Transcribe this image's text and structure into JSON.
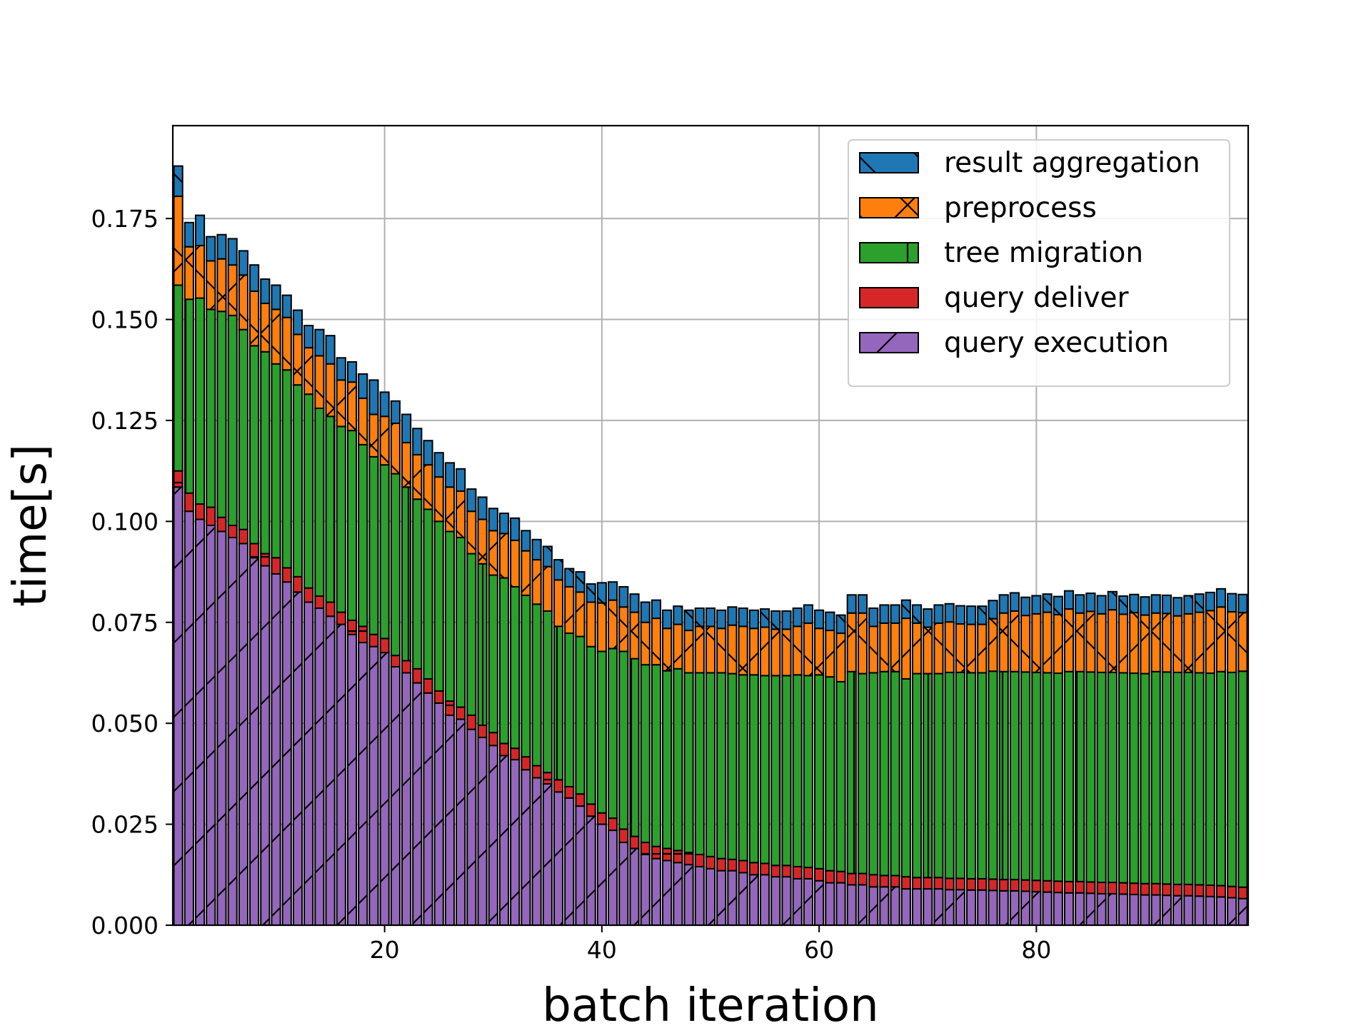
{
  "chart_data": {
    "type": "bar",
    "stacked": true,
    "xlabel": "batch iteration",
    "ylabel": "time[s]",
    "xlim": [
      0.5,
      99.5
    ],
    "ylim": [
      0,
      0.198
    ],
    "xticks": [
      20,
      40,
      60,
      80
    ],
    "yticks": [
      "0.000",
      "0.025",
      "0.050",
      "0.075",
      "0.100",
      "0.125",
      "0.150",
      "0.175"
    ],
    "grid": true,
    "legend_position": "top-right",
    "x_start": 1,
    "series": [
      {
        "name": "query execution",
        "color": "#9467bd",
        "hatch": "/",
        "values": [
          0.1085,
          0.1025,
          0.1005,
          0.099,
          0.0975,
          0.096,
          0.0945,
          0.091,
          0.089,
          0.087,
          0.085,
          0.0825,
          0.08,
          0.0785,
          0.0765,
          0.0745,
          0.072,
          0.07,
          0.069,
          0.0675,
          0.064,
          0.0625,
          0.06,
          0.0575,
          0.055,
          0.052,
          0.051,
          0.0485,
          0.0465,
          0.0445,
          0.042,
          0.041,
          0.0385,
          0.0365,
          0.035,
          0.033,
          0.0315,
          0.0295,
          0.027,
          0.025,
          0.0235,
          0.0205,
          0.019,
          0.0175,
          0.0165,
          0.016,
          0.0155,
          0.015,
          0.0145,
          0.014,
          0.0135,
          0.0135,
          0.013,
          0.0125,
          0.0125,
          0.012,
          0.012,
          0.0115,
          0.0115,
          0.011,
          0.0105,
          0.0105,
          0.01,
          0.01,
          0.0095,
          0.0095,
          0.0095,
          0.009,
          0.009,
          0.009,
          0.009,
          0.0088,
          0.0088,
          0.0087,
          0.0087,
          0.0086,
          0.0085,
          0.0085,
          0.0084,
          0.0083,
          0.0082,
          0.0081,
          0.008,
          0.008,
          0.0079,
          0.0078,
          0.0078,
          0.0077,
          0.0076,
          0.0075,
          0.0075,
          0.0074,
          0.0073,
          0.0073,
          0.0072,
          0.0071,
          0.007,
          0.0068,
          0.0066
        ]
      },
      {
        "name": "query deliver",
        "color": "#d62728",
        "hatch": "-",
        "values": [
          0.004,
          0.0045,
          0.0038,
          0.0045,
          0.0035,
          0.003,
          0.0035,
          0.0035,
          0.003,
          0.004,
          0.0035,
          0.0038,
          0.0035,
          0.003,
          0.0035,
          0.003,
          0.0035,
          0.004,
          0.003,
          0.0035,
          0.0028,
          0.003,
          0.0035,
          0.0035,
          0.003,
          0.0035,
          0.003,
          0.0035,
          0.003,
          0.0032,
          0.003,
          0.0028,
          0.0032,
          0.003,
          0.0028,
          0.003,
          0.0028,
          0.003,
          0.003,
          0.0028,
          0.003,
          0.0033,
          0.003,
          0.003,
          0.003,
          0.003,
          0.003,
          0.003,
          0.003,
          0.003,
          0.003,
          0.0028,
          0.003,
          0.003,
          0.0028,
          0.0028,
          0.0028,
          0.003,
          0.0028,
          0.003,
          0.003,
          0.0028,
          0.0028,
          0.0028,
          0.003,
          0.0028,
          0.0028,
          0.003,
          0.0028,
          0.0028,
          0.0028,
          0.0028,
          0.0028,
          0.0028,
          0.0028,
          0.0028,
          0.0028,
          0.0028,
          0.0028,
          0.0028,
          0.0028,
          0.0028,
          0.0028,
          0.0028,
          0.0028,
          0.0028,
          0.0028,
          0.0028,
          0.0028,
          0.0028,
          0.0028,
          0.0028,
          0.0028,
          0.0028,
          0.0028,
          0.0028,
          0.0028,
          0.0028,
          0.0028
        ]
      },
      {
        "name": "tree migration",
        "color": "#2ca02c",
        "hatch": "|",
        "values": [
          0.046,
          0.048,
          0.051,
          0.049,
          0.051,
          0.052,
          0.0495,
          0.049,
          0.05,
          0.048,
          0.049,
          0.0475,
          0.048,
          0.0465,
          0.046,
          0.046,
          0.047,
          0.045,
          0.044,
          0.043,
          0.045,
          0.043,
          0.042,
          0.042,
          0.042,
          0.042,
          0.042,
          0.04,
          0.04,
          0.039,
          0.041,
          0.04,
          0.04,
          0.04,
          0.04,
          0.038,
          0.038,
          0.039,
          0.039,
          0.04,
          0.042,
          0.044,
          0.044,
          0.044,
          0.045,
          0.044,
          0.045,
          0.0445,
          0.045,
          0.0455,
          0.046,
          0.046,
          0.046,
          0.0465,
          0.0465,
          0.047,
          0.047,
          0.0475,
          0.0475,
          0.048,
          0.048,
          0.047,
          0.05,
          0.0495,
          0.05,
          0.0505,
          0.0505,
          0.049,
          0.0505,
          0.0505,
          0.0505,
          0.051,
          0.051,
          0.051,
          0.051,
          0.0515,
          0.0515,
          0.0515,
          0.0515,
          0.0515,
          0.0515,
          0.0515,
          0.052,
          0.052,
          0.052,
          0.052,
          0.052,
          0.052,
          0.052,
          0.052,
          0.0525,
          0.0525,
          0.0525,
          0.0525,
          0.0525,
          0.0525,
          0.053,
          0.053,
          0.0535
        ]
      },
      {
        "name": "preprocess",
        "color": "#ff7f0e",
        "hatch": "x",
        "values": [
          0.022,
          0.013,
          0.013,
          0.012,
          0.013,
          0.0125,
          0.0135,
          0.0135,
          0.012,
          0.0135,
          0.013,
          0.0125,
          0.0115,
          0.013,
          0.013,
          0.0115,
          0.012,
          0.0115,
          0.0105,
          0.012,
          0.0125,
          0.011,
          0.011,
          0.011,
          0.011,
          0.011,
          0.0115,
          0.0105,
          0.011,
          0.011,
          0.011,
          0.0115,
          0.011,
          0.011,
          0.011,
          0.0115,
          0.0115,
          0.011,
          0.011,
          0.012,
          0.012,
          0.011,
          0.0115,
          0.0105,
          0.0115,
          0.0105,
          0.011,
          0.0105,
          0.0115,
          0.0115,
          0.011,
          0.012,
          0.012,
          0.0115,
          0.012,
          0.0115,
          0.0115,
          0.012,
          0.013,
          0.0115,
          0.0115,
          0.012,
          0.0145,
          0.015,
          0.0115,
          0.012,
          0.012,
          0.015,
          0.0125,
          0.0115,
          0.0125,
          0.0125,
          0.012,
          0.012,
          0.012,
          0.013,
          0.0145,
          0.015,
          0.014,
          0.0145,
          0.015,
          0.0145,
          0.0155,
          0.0145,
          0.015,
          0.0145,
          0.0155,
          0.0145,
          0.015,
          0.0145,
          0.0145,
          0.0145,
          0.014,
          0.0145,
          0.015,
          0.0155,
          0.016,
          0.015,
          0.0145
        ]
      },
      {
        "name": "result aggregation",
        "color": "#1f77b4",
        "hatch": "\\",
        "values": [
          0.0075,
          0.006,
          0.0075,
          0.006,
          0.006,
          0.0065,
          0.006,
          0.0065,
          0.006,
          0.006,
          0.0055,
          0.006,
          0.0055,
          0.0065,
          0.007,
          0.0055,
          0.005,
          0.006,
          0.0085,
          0.006,
          0.0055,
          0.007,
          0.0065,
          0.006,
          0.006,
          0.006,
          0.0055,
          0.0055,
          0.0055,
          0.0055,
          0.005,
          0.0055,
          0.005,
          0.005,
          0.005,
          0.005,
          0.0045,
          0.005,
          0.0045,
          0.005,
          0.0045,
          0.005,
          0.0045,
          0.005,
          0.0045,
          0.0045,
          0.0045,
          0.005,
          0.0045,
          0.0045,
          0.0045,
          0.0045,
          0.0045,
          0.0045,
          0.0045,
          0.0045,
          0.0045,
          0.0045,
          0.0045,
          0.0045,
          0.0045,
          0.0045,
          0.0045,
          0.0045,
          0.0045,
          0.0045,
          0.0045,
          0.0045,
          0.0045,
          0.0045,
          0.0045,
          0.0045,
          0.0045,
          0.0045,
          0.0045,
          0.0045,
          0.0045,
          0.0045,
          0.0045,
          0.0045,
          0.0045,
          0.0045,
          0.0045,
          0.0045,
          0.0045,
          0.0045,
          0.0045,
          0.0045,
          0.0045,
          0.0045,
          0.0045,
          0.0045,
          0.0045,
          0.0045,
          0.0045,
          0.0045,
          0.0045,
          0.0045,
          0.0045
        ]
      }
    ],
    "legend_order": [
      "result aggregation",
      "preprocess",
      "tree migration",
      "query deliver",
      "query execution"
    ]
  }
}
